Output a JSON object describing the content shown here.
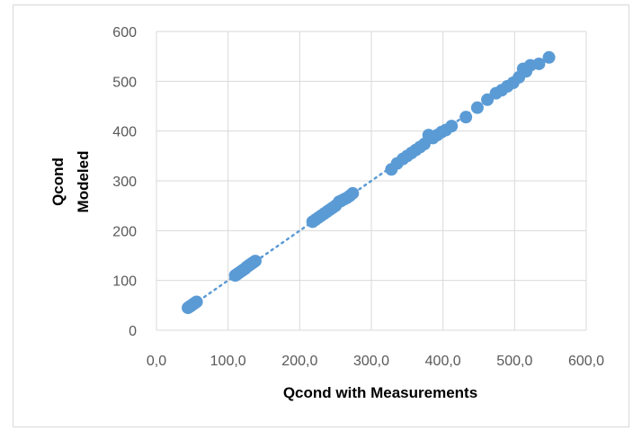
{
  "chart_data": {
    "type": "scatter",
    "title": "",
    "xlabel": "Qcond with Measurements",
    "ylabel_lines": [
      "Qcond",
      "Modeled"
    ],
    "xlim": [
      0,
      600
    ],
    "ylim": [
      0,
      600
    ],
    "x_ticks": [
      "0,0",
      "100,0",
      "200,0",
      "300,0",
      "400,0",
      "500,0",
      "600,0"
    ],
    "y_ticks": [
      "0",
      "100",
      "200",
      "300",
      "400",
      "500",
      "600"
    ],
    "grid": true,
    "marker_color": "#5b9bd5",
    "trendline": {
      "type": "linear",
      "style": "dotted",
      "x_range": [
        45,
        550
      ],
      "slope": 1.0,
      "intercept": 0
    },
    "series": [
      {
        "x": [
          44,
          46,
          48,
          50,
          52,
          54,
          56,
          110,
          112,
          114,
          116,
          118,
          120,
          122,
          124,
          126,
          128,
          130,
          132,
          134,
          136,
          138,
          218,
          222,
          226,
          230,
          234,
          238,
          242,
          246,
          250,
          255,
          258,
          262,
          266,
          270,
          274,
          328,
          336,
          344,
          350,
          356,
          362,
          368,
          374,
          380,
          386,
          392,
          398,
          404,
          412,
          432,
          448,
          462,
          474,
          482,
          490,
          498,
          506,
          512,
          516,
          522,
          534,
          548
        ],
        "y": [
          45,
          47,
          49,
          51,
          53,
          55,
          57,
          110,
          112,
          114,
          116,
          118,
          120,
          122,
          124,
          127,
          129,
          131,
          133,
          135,
          137,
          139,
          218,
          222,
          226,
          230,
          234,
          238,
          242,
          246,
          250,
          258,
          260,
          263,
          266,
          270,
          275,
          323,
          335,
          344,
          350,
          356,
          362,
          368,
          374,
          392,
          386,
          392,
          398,
          402,
          410,
          428,
          447,
          463,
          476,
          482,
          490,
          497,
          508,
          525,
          520,
          532,
          535,
          548
        ]
      }
    ]
  }
}
